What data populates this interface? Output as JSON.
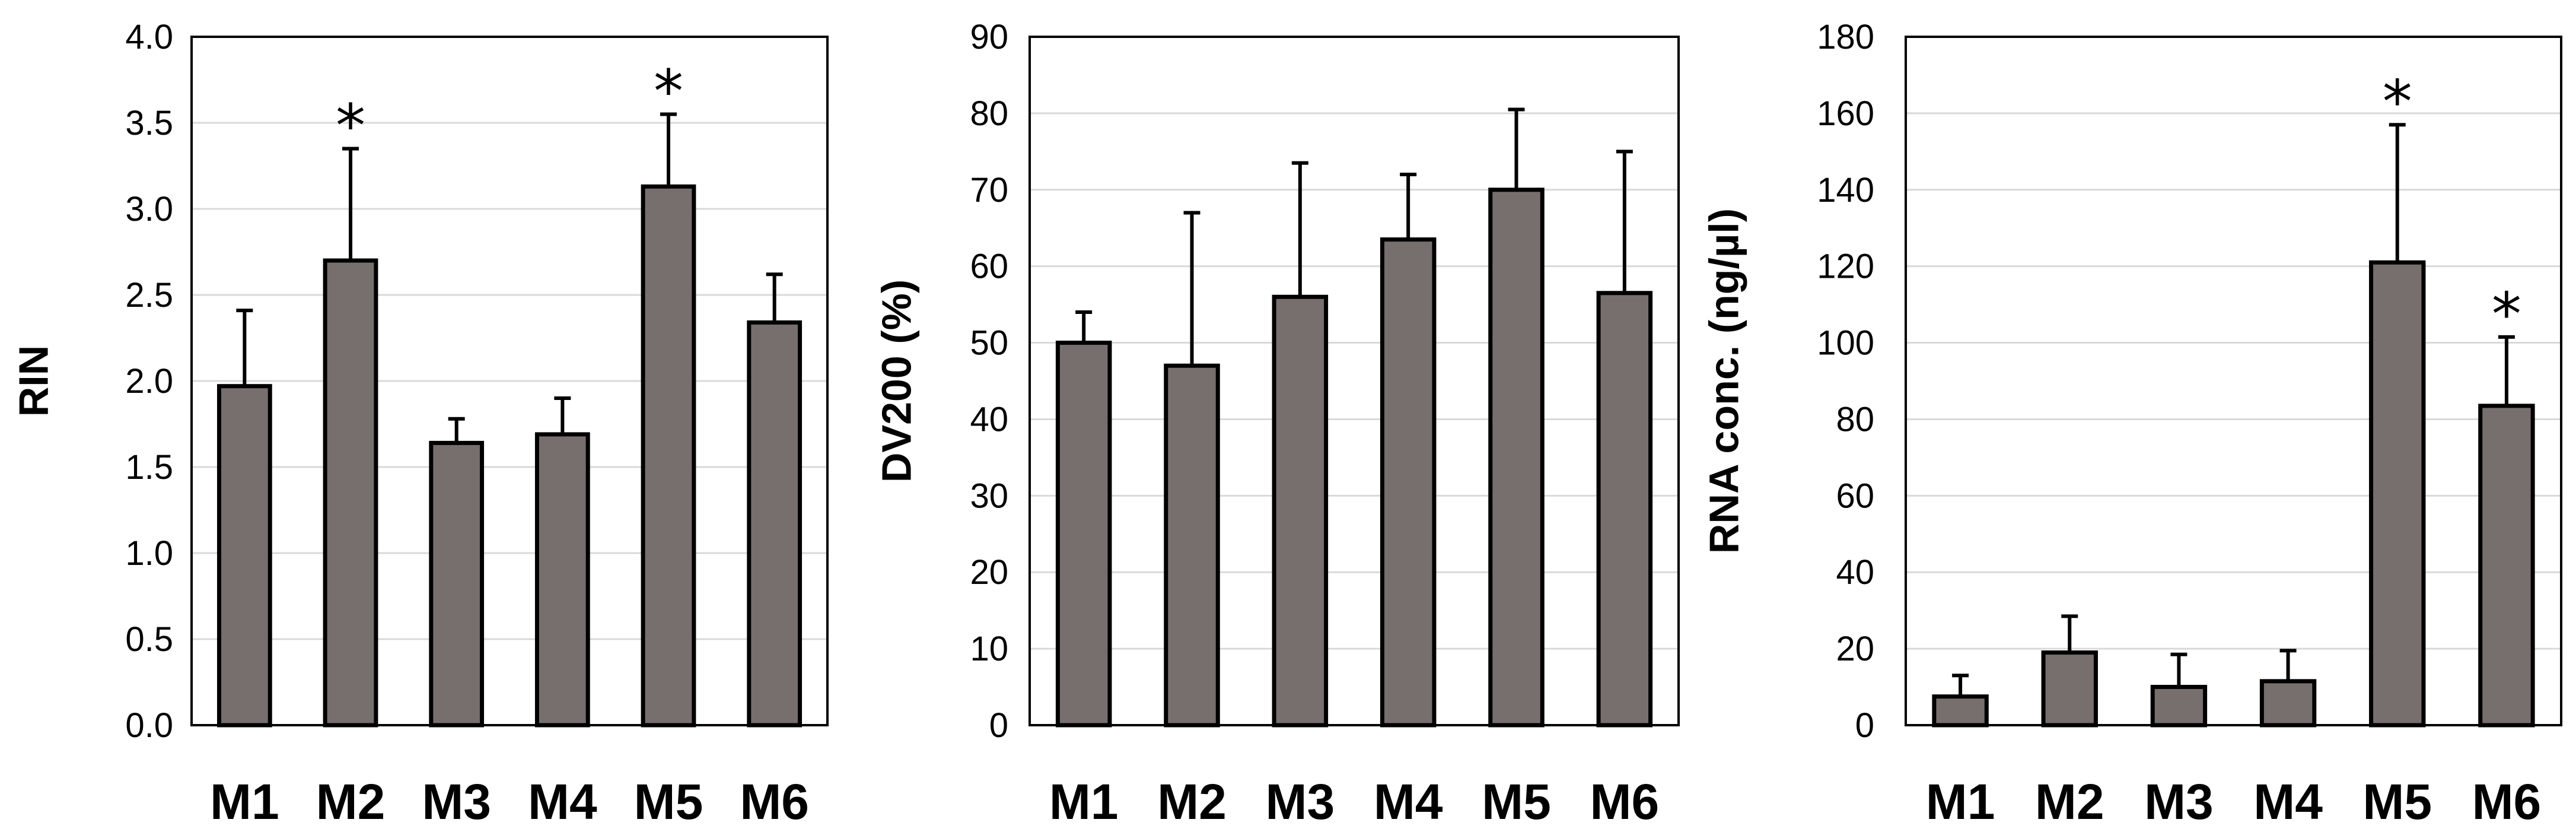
{
  "chart_data": [
    {
      "type": "bar",
      "categories": [
        "M1",
        "M2",
        "M3",
        "M4",
        "M5",
        "M6"
      ],
      "values": [
        1.97,
        2.7,
        1.64,
        1.69,
        3.13,
        2.34
      ],
      "error": [
        0.44,
        0.65,
        0.14,
        0.21,
        0.42,
        0.28
      ],
      "significance": [
        "",
        "*",
        "",
        "",
        "*",
        ""
      ],
      "ylabel": "RIN",
      "xlabel": "",
      "ylim": [
        0,
        4.0
      ],
      "yticks": [
        "0.0",
        "0.5",
        "1.0",
        "1.5",
        "2.0",
        "2.5",
        "3.0",
        "3.5",
        "4.0"
      ],
      "grid": true,
      "bar_color": "#776e6e"
    },
    {
      "type": "bar",
      "categories": [
        "M1",
        "M2",
        "M3",
        "M4",
        "M5",
        "M6"
      ],
      "values": [
        50,
        47,
        56,
        63.5,
        70,
        56.5
      ],
      "error": [
        4,
        20,
        17.5,
        8.5,
        10.5,
        18.5
      ],
      "significance": [
        "",
        "",
        "",
        "",
        "",
        ""
      ],
      "ylabel": "DV200 (%)",
      "xlabel": "",
      "ylim": [
        0,
        90
      ],
      "yticks": [
        "0",
        "10",
        "20",
        "30",
        "40",
        "50",
        "60",
        "70",
        "80",
        "90"
      ],
      "grid": true,
      "bar_color": "#776e6e"
    },
    {
      "type": "bar",
      "categories": [
        "M1",
        "M2",
        "M3",
        "M4",
        "M5",
        "M6"
      ],
      "values": [
        7.5,
        19,
        10,
        11.5,
        121,
        83.5
      ],
      "error": [
        5.5,
        9.5,
        8.5,
        8,
        36,
        18
      ],
      "significance": [
        "",
        "",
        "",
        "",
        "*",
        "*"
      ],
      "ylabel": "RNA conc. (ng/µl)",
      "xlabel": "",
      "ylim": [
        0,
        180
      ],
      "yticks": [
        "0",
        "20",
        "40",
        "60",
        "80",
        "100",
        "120",
        "140",
        "160",
        "180"
      ],
      "grid": true,
      "bar_color": "#776e6e"
    }
  ]
}
